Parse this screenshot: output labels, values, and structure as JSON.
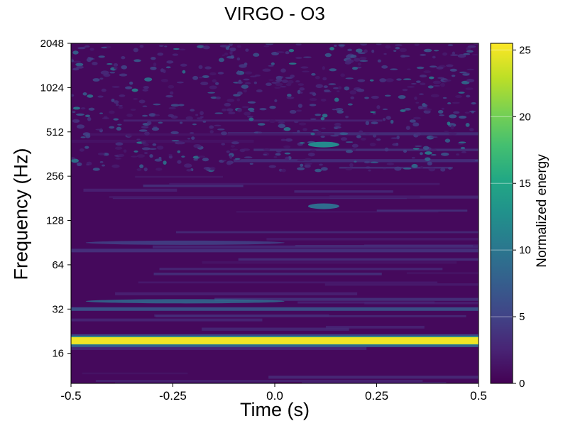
{
  "chart_data": {
    "type": "heatmap",
    "title": "VIRGO - O3",
    "xlabel": "Time (s)",
    "ylabel": "Frequency (Hz)",
    "colorbar_label": "Normalized energy",
    "xlim": [
      -0.5,
      0.5
    ],
    "ylim": [
      10,
      2048
    ],
    "y_scale": "log2",
    "x_ticks": [
      -0.5,
      -0.25,
      0.0,
      0.25,
      0.5
    ],
    "x_tick_labels": [
      "-0.5",
      "-0.25",
      "0.0",
      "0.25",
      "0.5"
    ],
    "y_ticks": [
      16,
      32,
      64,
      128,
      256,
      512,
      1024,
      2048
    ],
    "y_tick_labels": [
      "16",
      "32",
      "64",
      "128",
      "256",
      "512",
      "1024",
      "2048"
    ],
    "colorbar_range": [
      0,
      25.5
    ],
    "colorbar_ticks": [
      0,
      5,
      10,
      15,
      20,
      25
    ],
    "colorbar_tick_labels": [
      "0",
      "5",
      "10",
      "15",
      "20",
      "25"
    ],
    "colormap": "viridis",
    "features": [
      {
        "kind": "band",
        "frequency_hz": 19.5,
        "energy": 25,
        "t_range": [
          -0.5,
          0.5
        ]
      },
      {
        "kind": "band",
        "frequency_hz": 32,
        "energy": 9,
        "t_range": [
          -0.5,
          0.5
        ]
      },
      {
        "kind": "band",
        "frequency_hz": 80,
        "energy": 5,
        "t_range": [
          -0.5,
          0.5
        ]
      },
      {
        "kind": "blob",
        "t": 0.12,
        "frequency_hz": 420,
        "energy": 12
      },
      {
        "kind": "blob",
        "t": 0.12,
        "frequency_hz": 160,
        "energy": 9
      }
    ]
  }
}
